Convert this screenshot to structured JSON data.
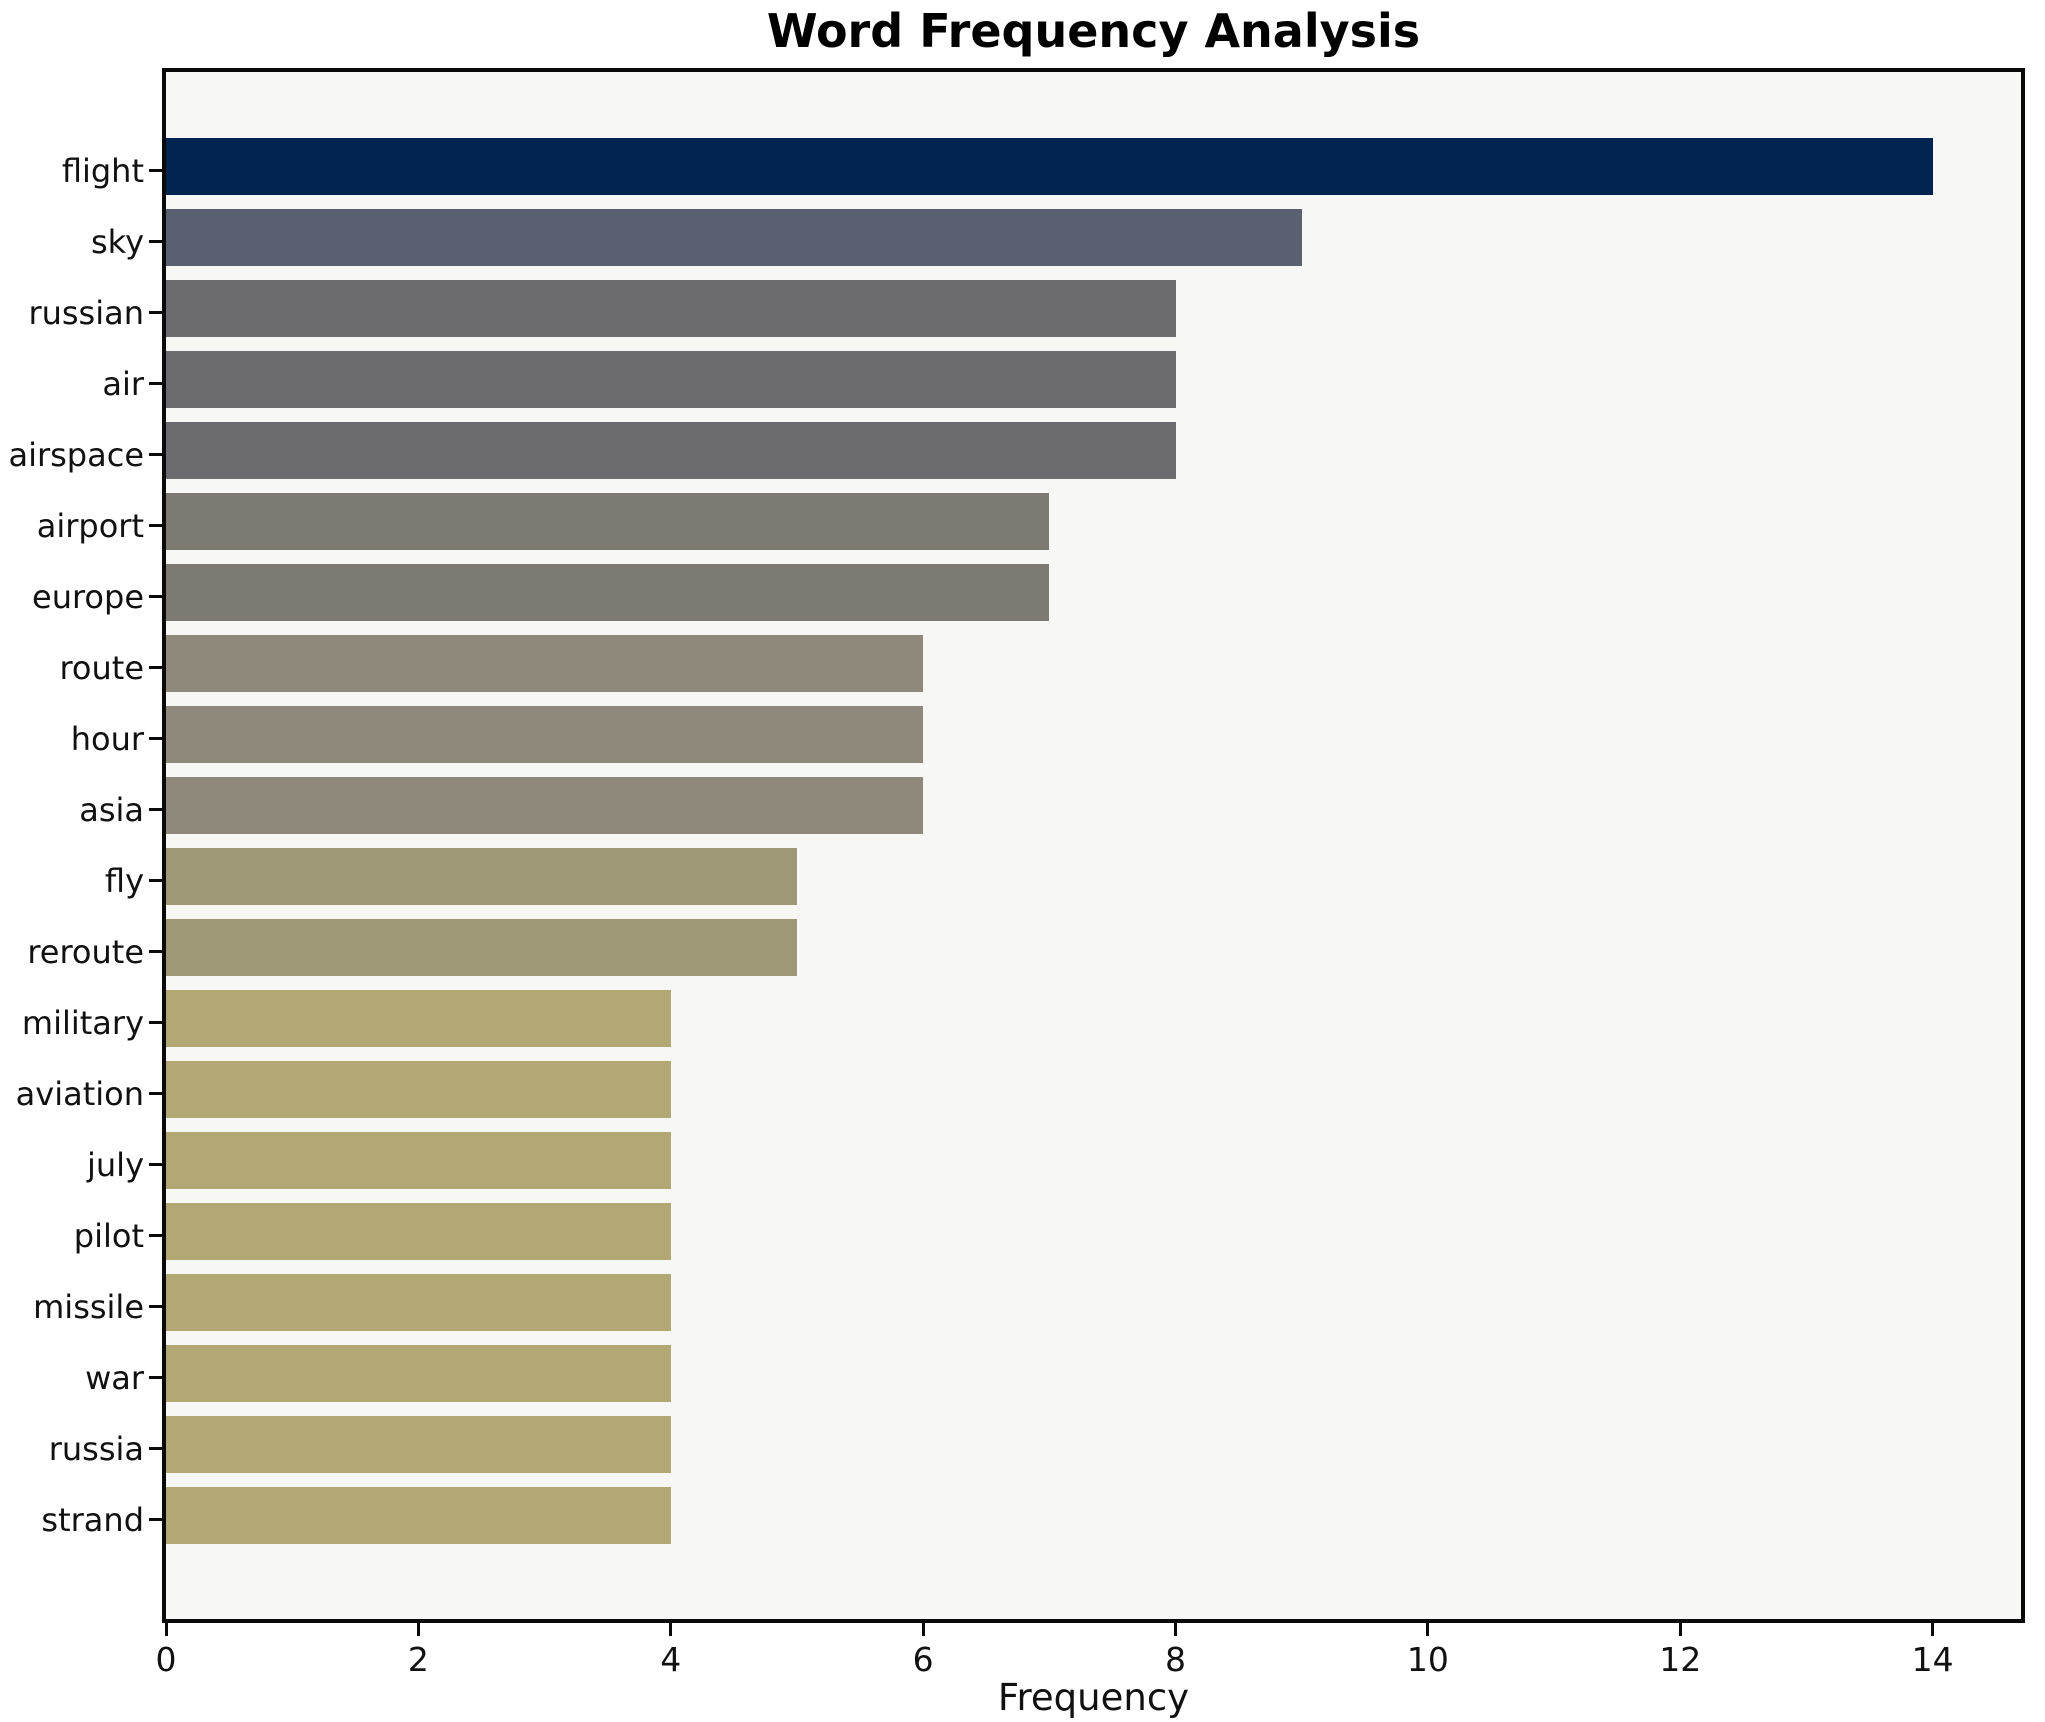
{
  "title": "Word Frequency Analysis",
  "chart_data": {
    "type": "bar",
    "orientation": "horizontal",
    "title": "Word Frequency Analysis",
    "xlabel": "Frequency",
    "ylabel": "",
    "categories": [
      "flight",
      "sky",
      "russian",
      "air",
      "airspace",
      "airport",
      "europe",
      "route",
      "hour",
      "asia",
      "fly",
      "reroute",
      "military",
      "aviation",
      "july",
      "pilot",
      "missile",
      "war",
      "russia",
      "strand"
    ],
    "values": [
      14,
      9,
      8,
      8,
      8,
      7,
      7,
      6,
      6,
      6,
      5,
      5,
      4,
      4,
      4,
      4,
      4,
      4,
      4,
      4
    ],
    "bar_colors": [
      "#00234f",
      "#5b6070",
      "#6c6c70",
      "#6c6c70",
      "#6c6c70",
      "#7c7a73",
      "#7c7a73",
      "#8e897a",
      "#8e897a",
      "#8e897a",
      "#9f9877",
      "#9f9877",
      "#b1a873",
      "#b1a873",
      "#b1a873",
      "#b1a873",
      "#b1a873",
      "#b1a873",
      "#b1a873",
      "#b1a873"
    ],
    "xticks": [
      0,
      2,
      4,
      6,
      8,
      10,
      12,
      14
    ],
    "xlim": [
      0,
      14.7
    ],
    "grid": false,
    "legend": null,
    "plot_background": "#f7f7f5",
    "figure_background": "#ffffff",
    "spine_color": "#0a0a0a"
  }
}
